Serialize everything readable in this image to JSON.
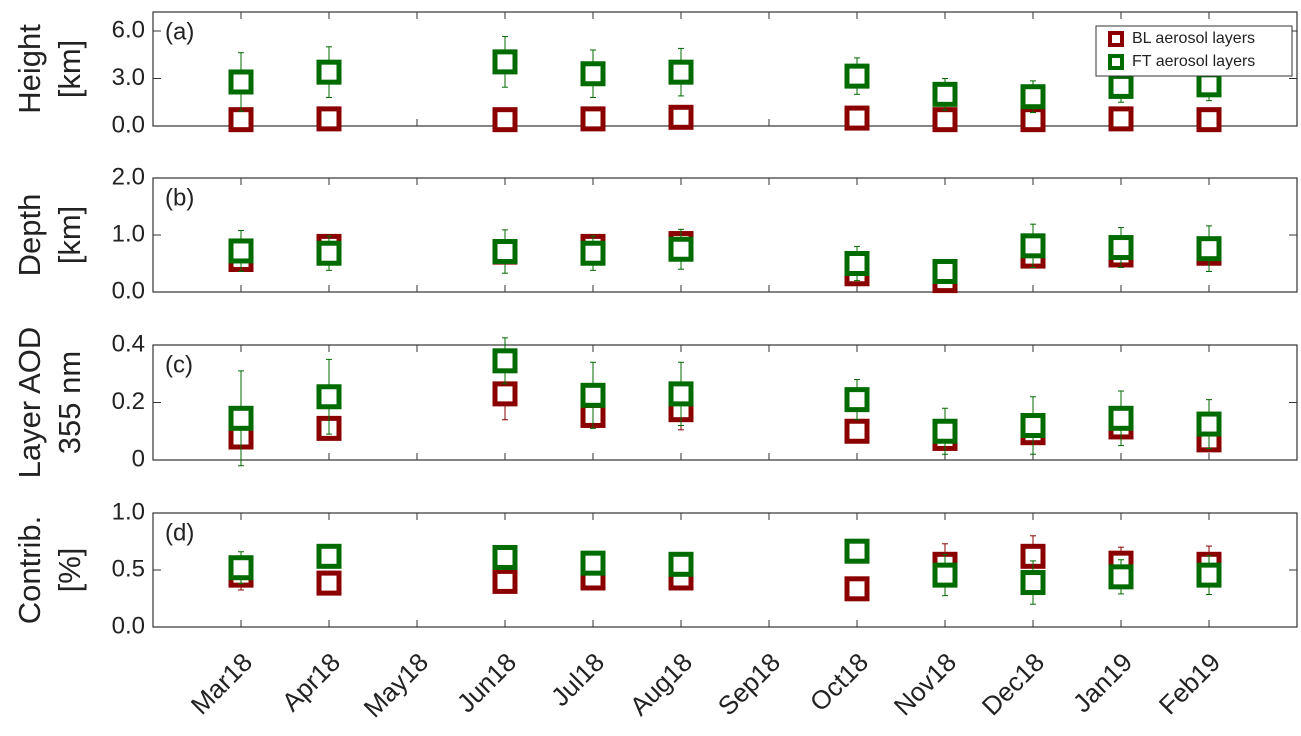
{
  "chart_data": [
    {
      "type": "scatter",
      "panel_label": "(a)",
      "ylabel": [
        "Height",
        "[km]"
      ],
      "ylim": [
        0,
        7.2
      ],
      "yticks": [
        {
          "value": 0,
          "label": "0.0"
        },
        {
          "value": 3,
          "label": "3.0"
        },
        {
          "value": 6,
          "label": "6.0"
        }
      ],
      "legend": "upper right",
      "series": [
        {
          "name": "BL aerosol layers",
          "color": "#8b0000",
          "values": [
            0.4,
            0.45,
            null,
            0.4,
            0.45,
            0.55,
            null,
            0.5,
            0.4,
            0.4,
            0.45,
            0.4
          ],
          "errors": [
            0.2,
            0.2,
            null,
            0.2,
            0.2,
            0.2,
            null,
            0.2,
            0.2,
            0.2,
            0.2,
            0.2
          ]
        },
        {
          "name": "FT aerosol layers",
          "color": "#006b00",
          "values": [
            2.78,
            3.4,
            null,
            4.05,
            3.3,
            3.4,
            null,
            3.15,
            2.0,
            1.85,
            2.5,
            2.6
          ],
          "errors": [
            1.85,
            1.6,
            null,
            1.6,
            1.5,
            1.5,
            null,
            1.15,
            1.0,
            1.0,
            1.0,
            1.0
          ]
        }
      ]
    },
    {
      "type": "scatter",
      "panel_label": "(b)",
      "ylabel": [
        "Depth",
        "[km]"
      ],
      "ylim": [
        0,
        2
      ],
      "yticks": [
        {
          "value": 0,
          "label": "0.0"
        },
        {
          "value": 1,
          "label": "1.0"
        },
        {
          "value": 2,
          "label": "2.0"
        }
      ],
      "series": [
        {
          "color": "#8b0000",
          "values": [
            0.57,
            0.8,
            null,
            0.7,
            0.8,
            0.85,
            null,
            0.32,
            0.2,
            0.63,
            0.65,
            0.68
          ],
          "errors": [
            0.15,
            0.15,
            null,
            0.15,
            0.15,
            0.15,
            null,
            0.1,
            0.1,
            0.15,
            0.15,
            0.15
          ]
        },
        {
          "color": "#006b00",
          "values": [
            0.72,
            0.68,
            null,
            0.71,
            0.68,
            0.75,
            null,
            0.5,
            0.36,
            0.81,
            0.78,
            0.76
          ],
          "errors": [
            0.36,
            0.3,
            null,
            0.38,
            0.3,
            0.35,
            null,
            0.3,
            0.15,
            0.38,
            0.35,
            0.4
          ]
        }
      ]
    },
    {
      "type": "scatter",
      "panel_label": "(c)",
      "ylabel": [
        "Layer AOD",
        "355 nm"
      ],
      "ylim": [
        0,
        0.4
      ],
      "yticks": [
        0,
        0.2,
        0.4
      ],
      "series": [
        {
          "color": "#8b0000",
          "values": [
            0.08,
            0.11,
            null,
            0.23,
            0.155,
            0.175,
            null,
            0.1,
            0.075,
            0.095,
            0.115,
            0.07
          ],
          "errors": [
            0.04,
            0.04,
            null,
            0.09,
            0.04,
            0.07,
            null,
            0.02,
            0.04,
            0.04,
            0.04,
            0.03
          ]
        },
        {
          "color": "#006b00",
          "values": [
            0.145,
            0.22,
            null,
            0.345,
            0.225,
            0.23,
            null,
            0.21,
            0.1,
            0.12,
            0.145,
            0.125
          ],
          "errors": [
            0.165,
            0.13,
            null,
            0.08,
            0.115,
            0.11,
            null,
            0.07,
            0.08,
            0.1,
            0.095,
            0.085
          ]
        }
      ]
    },
    {
      "type": "scatter",
      "panel_label": "(d)",
      "ylabel": [
        "Contrib.",
        "[%]"
      ],
      "ylim": [
        0,
        1
      ],
      "yticks": [
        {
          "value": 0,
          "label": "0.0"
        },
        {
          "value": 0.5,
          "label": "0.5"
        },
        {
          "value": 1,
          "label": "1.0"
        }
      ],
      "categories": [
        "Mar18",
        "Apr18",
        "May18",
        "Jun18",
        "Jul18",
        "Aug18",
        "Sep18",
        "Oct18",
        "Nov18",
        "Dec18",
        "Jan19",
        "Feb19"
      ],
      "series": [
        {
          "color": "#8b0000",
          "values": [
            0.455,
            0.385,
            null,
            0.4,
            0.43,
            0.43,
            null,
            0.335,
            0.55,
            0.62,
            0.56,
            0.55
          ],
          "errors": [
            0.13,
            0.1,
            null,
            0.1,
            0.1,
            0.09,
            null,
            0.03,
            0.18,
            0.18,
            0.14,
            0.16
          ]
        },
        {
          "color": "#006b00",
          "values": [
            0.52,
            0.62,
            null,
            0.61,
            0.56,
            0.55,
            null,
            0.665,
            0.455,
            0.39,
            0.44,
            0.455
          ],
          "errors": [
            0.14,
            0.1,
            null,
            0.1,
            0.1,
            0.1,
            null,
            0.03,
            0.18,
            0.19,
            0.15,
            0.17
          ]
        }
      ]
    }
  ]
}
